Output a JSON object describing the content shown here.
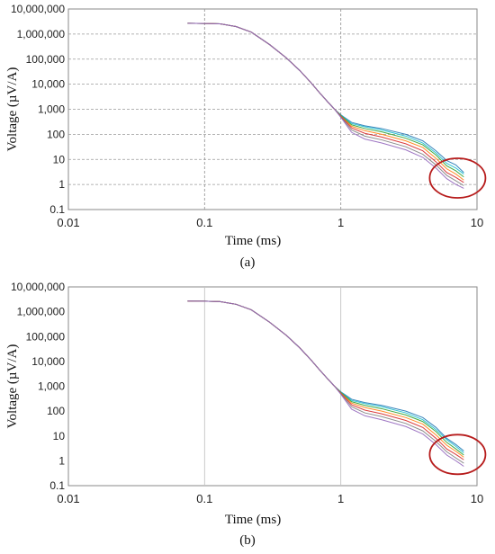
{
  "chart_data": [
    {
      "type": "line",
      "panel_label": "(a)",
      "xlabel": "Time (ms)",
      "ylabel": "Voltage (µV/A)",
      "x_scale": "log",
      "y_scale": "log",
      "xlim": [
        0.01,
        10
      ],
      "ylim": [
        0.1,
        10000000
      ],
      "x_ticks": [
        "0.01",
        "0.1",
        "1",
        "10"
      ],
      "y_ticks": [
        "0.1",
        "1",
        "10",
        "100",
        "1,000",
        "10,000",
        "100,000",
        "1,000,000",
        "10,000,000"
      ],
      "grid": "dashed horizontal + vertical at decades",
      "annotation": "red ellipse highlighting late-time noisy tails",
      "x": [
        0.075,
        0.1,
        0.13,
        0.17,
        0.22,
        0.3,
        0.4,
        0.5,
        0.6,
        0.7,
        0.8,
        0.9,
        1.0,
        1.2,
        1.5,
        2.0,
        3.0,
        4.0,
        5.0,
        6.0,
        7.0,
        8.0
      ],
      "series": [
        {
          "color": "#1f77b4",
          "values": [
            2700000,
            2650000,
            2550000,
            2000000,
            1200000,
            380000,
            110000,
            35000,
            12000,
            4500,
            2000,
            1000,
            600,
            300,
            220,
            170,
            100,
            55,
            22,
            9,
            6,
            3
          ]
        },
        {
          "color": "#17becf",
          "values": [
            2700000,
            2650000,
            2550000,
            2000000,
            1200000,
            380000,
            110000,
            35000,
            12000,
            4500,
            2000,
            1000,
            580,
            270,
            200,
            150,
            85,
            45,
            18,
            7,
            4.5,
            2.6
          ]
        },
        {
          "color": "#2ca02c",
          "values": [
            2700000,
            2650000,
            2550000,
            2000000,
            1200000,
            380000,
            110000,
            35000,
            12000,
            4500,
            2000,
            1000,
            560,
            240,
            170,
            125,
            70,
            38,
            15,
            5.5,
            3.5,
            2
          ]
        },
        {
          "color": "#ff7f0e",
          "values": [
            2700000,
            2650000,
            2550000,
            2000000,
            1200000,
            380000,
            110000,
            35000,
            12000,
            4500,
            2000,
            1000,
            540,
            210,
            140,
            100,
            55,
            30,
            11,
            4.2,
            2.6,
            1.5
          ]
        },
        {
          "color": "#d62728",
          "values": [
            2700000,
            2650000,
            2550000,
            2000000,
            1200000,
            380000,
            110000,
            35000,
            12000,
            4500,
            2000,
            1000,
            520,
            180,
            110,
            78,
            42,
            22,
            8,
            3,
            1.9,
            1.2
          ]
        },
        {
          "color": "#7f7f7f",
          "values": [
            2700000,
            2650000,
            2550000,
            2000000,
            1200000,
            380000,
            110000,
            35000,
            12000,
            4500,
            2000,
            1000,
            500,
            150,
            85,
            60,
            32,
            16,
            6,
            2.3,
            1.4,
            0.9
          ]
        },
        {
          "color": "#9467bd",
          "values": [
            2700000,
            2650000,
            2550000,
            2000000,
            1200000,
            380000,
            110000,
            35000,
            12000,
            4500,
            2000,
            1000,
            480,
            120,
            65,
            45,
            24,
            12,
            4.5,
            1.7,
            1.0,
            0.7
          ]
        }
      ]
    },
    {
      "type": "line",
      "panel_label": "(b)",
      "xlabel": "Time (ms)",
      "ylabel": "Voltage (µV/A)",
      "x_scale": "log",
      "y_scale": "log",
      "xlim": [
        0.01,
        10
      ],
      "ylim": [
        0.1,
        10000000
      ],
      "x_ticks": [
        "0.01",
        "0.1",
        "1",
        "10"
      ],
      "y_ticks": [
        "0.1",
        "1",
        "10",
        "100",
        "1,000",
        "10,000",
        "100,000",
        "1,000,000",
        "10,000,000"
      ],
      "grid": "solid vertical at decades",
      "annotation": "red ellipse highlighting late-time noisy tails",
      "x": [
        0.075,
        0.1,
        0.13,
        0.17,
        0.22,
        0.3,
        0.4,
        0.5,
        0.6,
        0.7,
        0.8,
        0.9,
        1.0,
        1.2,
        1.5,
        2.0,
        3.0,
        4.0,
        5.0,
        6.0,
        7.0,
        8.0
      ],
      "series": [
        {
          "color": "#1f77b4",
          "values": [
            2700000,
            2650000,
            2550000,
            2000000,
            1200000,
            380000,
            110000,
            35000,
            12000,
            4500,
            2000,
            1000,
            600,
            300,
            220,
            170,
            100,
            55,
            22,
            8,
            4.5,
            2.5
          ]
        },
        {
          "color": "#17becf",
          "values": [
            2700000,
            2650000,
            2550000,
            2000000,
            1200000,
            380000,
            110000,
            35000,
            12000,
            4500,
            2000,
            1000,
            580,
            270,
            200,
            150,
            85,
            45,
            18,
            7,
            3.8,
            2.1
          ]
        },
        {
          "color": "#2ca02c",
          "values": [
            2700000,
            2650000,
            2550000,
            2000000,
            1200000,
            380000,
            110000,
            35000,
            12000,
            4500,
            2000,
            1000,
            560,
            240,
            170,
            125,
            70,
            38,
            15,
            5.5,
            3,
            1.7
          ]
        },
        {
          "color": "#ff7f0e",
          "values": [
            2700000,
            2650000,
            2550000,
            2000000,
            1200000,
            380000,
            110000,
            35000,
            12000,
            4500,
            2000,
            1000,
            540,
            210,
            140,
            100,
            55,
            30,
            11,
            4.2,
            2.4,
            1.4
          ]
        },
        {
          "color": "#d62728",
          "values": [
            2700000,
            2650000,
            2550000,
            2000000,
            1200000,
            380000,
            110000,
            35000,
            12000,
            4500,
            2000,
            1000,
            520,
            180,
            110,
            78,
            42,
            22,
            8,
            3,
            1.8,
            1.1
          ]
        },
        {
          "color": "#7f7f7f",
          "values": [
            2700000,
            2650000,
            2550000,
            2000000,
            1200000,
            380000,
            110000,
            35000,
            12000,
            4500,
            2000,
            1000,
            500,
            150,
            85,
            60,
            32,
            16,
            6,
            2.3,
            1.3,
            0.8
          ]
        },
        {
          "color": "#9467bd",
          "values": [
            2700000,
            2650000,
            2550000,
            2000000,
            1200000,
            380000,
            110000,
            35000,
            12000,
            4500,
            2000,
            1000,
            480,
            120,
            65,
            45,
            24,
            12,
            4.5,
            1.7,
            1.0,
            0.6
          ]
        }
      ]
    }
  ],
  "colors": {
    "highlight_ellipse": "#b71c1c",
    "grid": "#9a9a9a",
    "axis": "#8a8a8a"
  }
}
